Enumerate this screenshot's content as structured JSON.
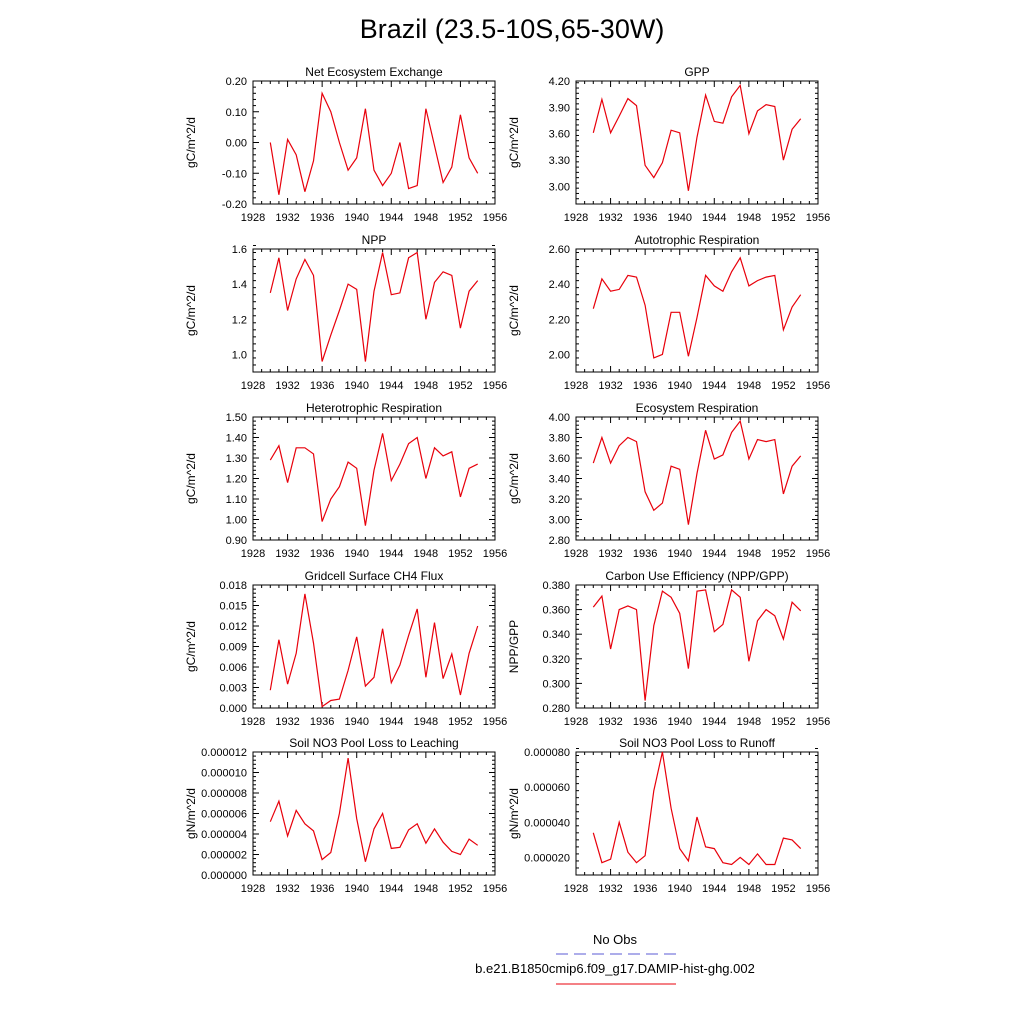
{
  "page": {
    "title": "Brazil (23.5-10S,65-30W)",
    "legend": {
      "obs_label": "No Obs",
      "obs_color": "#5b5bd6",
      "model_label": "b.e21.B1850cmip6.f09_g17.DAMIP-hist-ghg.002",
      "model_color": "#e8000b"
    }
  },
  "chart_data": [
    {
      "type": "line",
      "title": "Net Ecosystem Exchange",
      "ylabel": "gC/m^2/d",
      "xlim": [
        1928,
        1956
      ],
      "ylim": [
        -0.2,
        0.2
      ],
      "yticks": [
        "-0.20",
        "-0.10",
        "0.00",
        "0.10",
        "0.20"
      ],
      "xticks": [
        "1928",
        "1932",
        "1936",
        "1940",
        "1944",
        "1948",
        "1952",
        "1956"
      ],
      "series": [
        {
          "color": "#e8000b",
          "x": [
            1930,
            1931,
            1932,
            1933,
            1934,
            1935,
            1936,
            1937,
            1938,
            1939,
            1940,
            1941,
            1942,
            1943,
            1944,
            1945,
            1946,
            1947,
            1948,
            1949,
            1950,
            1951,
            1952,
            1953,
            1954
          ],
          "values": [
            0.0,
            -0.17,
            0.01,
            -0.04,
            -0.16,
            -0.06,
            0.16,
            0.1,
            0.0,
            -0.09,
            -0.05,
            0.11,
            -0.09,
            -0.14,
            -0.1,
            0.0,
            -0.15,
            -0.14,
            0.11,
            -0.01,
            -0.13,
            -0.08,
            0.09,
            -0.05,
            -0.1
          ]
        }
      ]
    },
    {
      "type": "line",
      "title": "GPP",
      "ylabel": "gC/m^2/d",
      "xlim": [
        1928,
        1956
      ],
      "ylim": [
        2.8,
        4.2
      ],
      "yticks": [
        "3.00",
        "3.30",
        "3.60",
        "3.90",
        "4.20"
      ],
      "xticks": [
        "1928",
        "1932",
        "1936",
        "1940",
        "1944",
        "1948",
        "1952",
        "1956"
      ],
      "series": [
        {
          "color": "#e8000b",
          "x": [
            1930,
            1931,
            1932,
            1933,
            1934,
            1935,
            1936,
            1937,
            1938,
            1939,
            1940,
            1941,
            1942,
            1943,
            1944,
            1945,
            1946,
            1947,
            1948,
            1949,
            1950,
            1951,
            1952,
            1953,
            1954
          ],
          "values": [
            3.61,
            3.99,
            3.61,
            3.8,
            4.0,
            3.92,
            3.24,
            3.1,
            3.27,
            3.64,
            3.61,
            2.95,
            3.56,
            4.04,
            3.74,
            3.72,
            4.02,
            4.15,
            3.6,
            3.86,
            3.93,
            3.91,
            3.3,
            3.65,
            3.77
          ]
        }
      ]
    },
    {
      "type": "line",
      "title": "NPP",
      "ylabel": "gC/m^2/d",
      "xlim": [
        1928,
        1956
      ],
      "ylim": [
        0.9,
        1.6
      ],
      "yticks": [
        "1.0",
        "1.2",
        "1.4",
        "1.6"
      ],
      "xticks": [
        "1928",
        "1932",
        "1936",
        "1940",
        "1944",
        "1948",
        "1952",
        "1956"
      ],
      "series": [
        {
          "color": "#e8000b",
          "x": [
            1930,
            1931,
            1932,
            1933,
            1934,
            1935,
            1936,
            1937,
            1938,
            1939,
            1940,
            1941,
            1942,
            1943,
            1944,
            1945,
            1946,
            1947,
            1948,
            1949,
            1950,
            1951,
            1952,
            1953,
            1954
          ],
          "values": [
            1.35,
            1.55,
            1.25,
            1.43,
            1.54,
            1.45,
            0.96,
            1.11,
            1.25,
            1.4,
            1.37,
            0.96,
            1.36,
            1.58,
            1.34,
            1.35,
            1.55,
            1.58,
            1.2,
            1.41,
            1.47,
            1.45,
            1.15,
            1.36,
            1.42
          ]
        }
      ]
    },
    {
      "type": "line",
      "title": "Autotrophic Respiration",
      "ylabel": "gC/m^2/d",
      "xlim": [
        1928,
        1956
      ],
      "ylim": [
        1.9,
        2.6
      ],
      "yticks": [
        "2.00",
        "2.20",
        "2.40",
        "2.60"
      ],
      "xticks": [
        "1928",
        "1932",
        "1936",
        "1940",
        "1944",
        "1948",
        "1952",
        "1956"
      ],
      "series": [
        {
          "color": "#e8000b",
          "x": [
            1930,
            1931,
            1932,
            1933,
            1934,
            1935,
            1936,
            1937,
            1938,
            1939,
            1940,
            1941,
            1942,
            1943,
            1944,
            1945,
            1946,
            1947,
            1948,
            1949,
            1950,
            1951,
            1952,
            1953,
            1954
          ],
          "values": [
            2.26,
            2.43,
            2.36,
            2.37,
            2.45,
            2.44,
            2.28,
            1.98,
            2.0,
            2.24,
            2.24,
            1.99,
            2.21,
            2.45,
            2.39,
            2.36,
            2.47,
            2.55,
            2.39,
            2.42,
            2.44,
            2.45,
            2.14,
            2.27,
            2.34
          ]
        }
      ]
    },
    {
      "type": "line",
      "title": "Heterotrophic Respiration",
      "ylabel": "gC/m^2/d",
      "xlim": [
        1928,
        1956
      ],
      "ylim": [
        0.9,
        1.5
      ],
      "yticks": [
        "0.90",
        "1.00",
        "1.10",
        "1.20",
        "1.30",
        "1.40",
        "1.50"
      ],
      "xticks": [
        "1928",
        "1932",
        "1936",
        "1940",
        "1944",
        "1948",
        "1952",
        "1956"
      ],
      "series": [
        {
          "color": "#e8000b",
          "x": [
            1930,
            1931,
            1932,
            1933,
            1934,
            1935,
            1936,
            1937,
            1938,
            1939,
            1940,
            1941,
            1942,
            1943,
            1944,
            1945,
            1946,
            1947,
            1948,
            1949,
            1950,
            1951,
            1952,
            1953,
            1954
          ],
          "values": [
            1.29,
            1.36,
            1.18,
            1.35,
            1.35,
            1.32,
            0.99,
            1.1,
            1.16,
            1.28,
            1.25,
            0.97,
            1.24,
            1.42,
            1.19,
            1.27,
            1.37,
            1.4,
            1.2,
            1.35,
            1.31,
            1.33,
            1.11,
            1.25,
            1.27
          ]
        }
      ]
    },
    {
      "type": "line",
      "title": "Ecosystem Respiration",
      "ylabel": "gC/m^2/d",
      "xlim": [
        1928,
        1956
      ],
      "ylim": [
        2.8,
        4.0
      ],
      "yticks": [
        "2.80",
        "3.00",
        "3.20",
        "3.40",
        "3.60",
        "3.80",
        "4.00"
      ],
      "xticks": [
        "1928",
        "1932",
        "1936",
        "1940",
        "1944",
        "1948",
        "1952",
        "1956"
      ],
      "series": [
        {
          "color": "#e8000b",
          "x": [
            1930,
            1931,
            1932,
            1933,
            1934,
            1935,
            1936,
            1937,
            1938,
            1939,
            1940,
            1941,
            1942,
            1943,
            1944,
            1945,
            1946,
            1947,
            1948,
            1949,
            1950,
            1951,
            1952,
            1953,
            1954
          ],
          "values": [
            3.55,
            3.8,
            3.55,
            3.72,
            3.8,
            3.76,
            3.27,
            3.09,
            3.16,
            3.52,
            3.49,
            2.95,
            3.45,
            3.87,
            3.59,
            3.63,
            3.85,
            3.96,
            3.59,
            3.78,
            3.76,
            3.78,
            3.25,
            3.52,
            3.62
          ]
        }
      ]
    },
    {
      "type": "line",
      "title": "Gridcell Surface CH4 Flux",
      "ylabel": "gC/m^2/d",
      "xlim": [
        1928,
        1956
      ],
      "ylim": [
        0.0,
        0.018
      ],
      "yticks": [
        "0.000",
        "0.003",
        "0.006",
        "0.009",
        "0.012",
        "0.015",
        "0.018"
      ],
      "xticks": [
        "1928",
        "1932",
        "1936",
        "1940",
        "1944",
        "1948",
        "1952",
        "1956"
      ],
      "series": [
        {
          "color": "#e8000b",
          "x": [
            1930,
            1931,
            1932,
            1933,
            1934,
            1935,
            1936,
            1937,
            1938,
            1939,
            1940,
            1941,
            1942,
            1943,
            1944,
            1945,
            1946,
            1947,
            1948,
            1949,
            1950,
            1951,
            1952,
            1953,
            1954
          ],
          "values": [
            0.0026,
            0.01,
            0.0035,
            0.008,
            0.0167,
            0.0095,
            0.0002,
            0.0011,
            0.0013,
            0.0055,
            0.0104,
            0.0032,
            0.0045,
            0.0116,
            0.0037,
            0.0063,
            0.0106,
            0.0145,
            0.0045,
            0.0125,
            0.0043,
            0.0079,
            0.0019,
            0.008,
            0.012
          ]
        }
      ]
    },
    {
      "type": "line",
      "title": "Carbon Use Efficiency (NPP/GPP)",
      "ylabel": "NPP/GPP",
      "xlim": [
        1928,
        1956
      ],
      "ylim": [
        0.28,
        0.38
      ],
      "yticks": [
        "0.280",
        "0.300",
        "0.320",
        "0.340",
        "0.360",
        "0.380"
      ],
      "xticks": [
        "1928",
        "1932",
        "1936",
        "1940",
        "1944",
        "1948",
        "1952",
        "1956"
      ],
      "series": [
        {
          "color": "#e8000b",
          "x": [
            1930,
            1931,
            1932,
            1933,
            1934,
            1935,
            1936,
            1937,
            1938,
            1939,
            1940,
            1941,
            1942,
            1943,
            1944,
            1945,
            1946,
            1947,
            1948,
            1949,
            1950,
            1951,
            1952,
            1953,
            1954
          ],
          "values": [
            0.362,
            0.371,
            0.328,
            0.36,
            0.363,
            0.36,
            0.286,
            0.347,
            0.375,
            0.37,
            0.357,
            0.312,
            0.375,
            0.376,
            0.342,
            0.348,
            0.376,
            0.37,
            0.318,
            0.351,
            0.36,
            0.355,
            0.336,
            0.366,
            0.359
          ]
        }
      ]
    },
    {
      "type": "line",
      "title": "Soil NO3 Pool Loss to Leaching",
      "ylabel": "gN/m^2/d",
      "xlim": [
        1928,
        1956
      ],
      "ylim": [
        0.0,
        1.2e-05
      ],
      "yticks": [
        "0.000000",
        "0.000002",
        "0.000004",
        "0.000006",
        "0.000008",
        "0.000010",
        "0.000012"
      ],
      "xticks": [
        "1928",
        "1932",
        "1936",
        "1940",
        "1944",
        "1948",
        "1952",
        "1956"
      ],
      "series": [
        {
          "color": "#e8000b",
          "x": [
            1930,
            1931,
            1932,
            1933,
            1934,
            1935,
            1936,
            1937,
            1938,
            1939,
            1940,
            1941,
            1942,
            1943,
            1944,
            1945,
            1946,
            1947,
            1948,
            1949,
            1950,
            1951,
            1952,
            1953,
            1954
          ],
          "values": [
            5.2e-06,
            7.2e-06,
            3.8e-06,
            6.3e-06,
            5e-06,
            4.3e-06,
            1.5e-06,
            2.2e-06,
            6e-06,
            1.14e-05,
            5.5e-06,
            1.3e-06,
            4.5e-06,
            6e-06,
            2.6e-06,
            2.7e-06,
            4.4e-06,
            5e-06,
            3.1e-06,
            4.5e-06,
            3.2e-06,
            2.3e-06,
            2e-06,
            3.5e-06,
            2.9e-06
          ]
        }
      ]
    },
    {
      "type": "line",
      "title": "Soil NO3 Pool Loss to Runoff",
      "ylabel": "gN/m^2/d",
      "xlim": [
        1928,
        1956
      ],
      "ylim": [
        1e-05,
        8e-05
      ],
      "yticks": [
        "0.000020",
        "0.000040",
        "0.000060",
        "0.000080"
      ],
      "xticks": [
        "1928",
        "1932",
        "1936",
        "1940",
        "1944",
        "1948",
        "1952",
        "1956"
      ],
      "series": [
        {
          "color": "#e8000b",
          "x": [
            1930,
            1931,
            1932,
            1933,
            1934,
            1935,
            1936,
            1937,
            1938,
            1939,
            1940,
            1941,
            1942,
            1943,
            1944,
            1945,
            1946,
            1947,
            1948,
            1949,
            1950,
            1951,
            1952,
            1953,
            1954
          ],
          "values": [
            3.4e-05,
            1.7e-05,
            1.9e-05,
            4e-05,
            2.3e-05,
            1.7e-05,
            2.1e-05,
            5.8e-05,
            8e-05,
            4.8e-05,
            2.5e-05,
            1.8e-05,
            4.3e-05,
            2.6e-05,
            2.5e-05,
            1.7e-05,
            1.6e-05,
            2e-05,
            1.6e-05,
            2.2e-05,
            1.6e-05,
            1.6e-05,
            3.1e-05,
            3e-05,
            2.5e-05
          ]
        }
      ]
    }
  ]
}
